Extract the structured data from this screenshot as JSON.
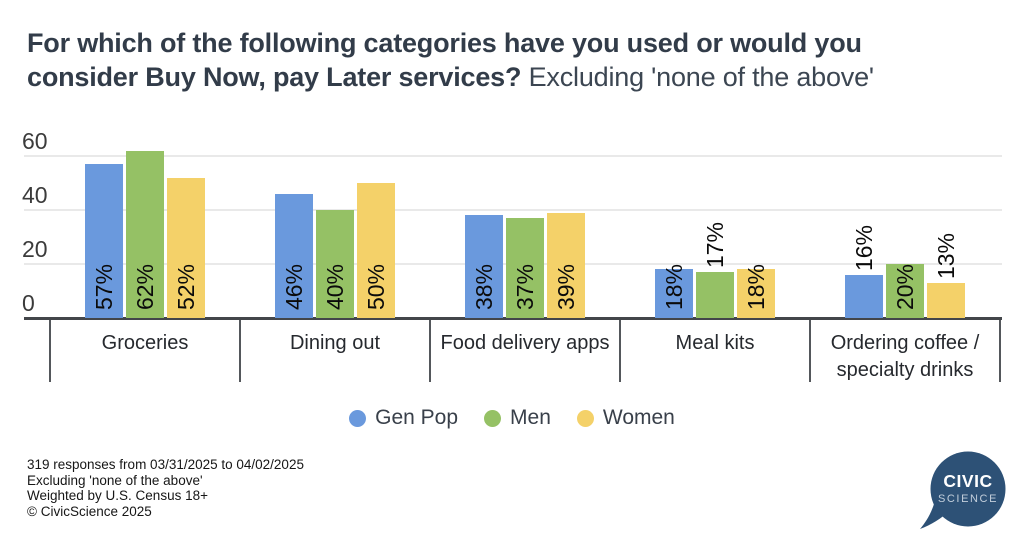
{
  "title": {
    "line1": "For which of the following categories have you used or would you",
    "line2_bold": "consider Buy Now, pay Later services?",
    "subtitle": "Excluding 'none of the above'"
  },
  "chart_data": {
    "type": "bar",
    "categories": [
      "Groceries",
      "Dining out",
      "Food delivery apps",
      "Meal kits",
      "Ordering coffee / specialty drinks"
    ],
    "series": [
      {
        "name": "Gen Pop",
        "color": "#6a99dd",
        "values": [
          57,
          46,
          38,
          18,
          16
        ]
      },
      {
        "name": "Men",
        "color": "#95c165",
        "values": [
          62,
          40,
          37,
          17,
          20
        ]
      },
      {
        "name": "Women",
        "color": "#f4d169",
        "values": [
          52,
          50,
          39,
          18,
          13
        ]
      }
    ],
    "value_suffix": "%",
    "yticks": [
      0,
      20,
      40,
      60
    ],
    "ylim": [
      0,
      65
    ],
    "grid": true,
    "legend_position": "bottom",
    "value_label_color": "#0b0b0b"
  },
  "footnotes": [
    "319 responses from 03/31/2025 to 04/02/2025",
    "Excluding 'none of the above'",
    "Weighted by U.S. Census 18+",
    "© CivicScience 2025"
  ],
  "logo": {
    "line1": "CIVIC",
    "line2": "SCIENCE",
    "bubble_color": "#2d5176",
    "line1_color": "#ffffff",
    "line2_color": "#c2cedb"
  }
}
